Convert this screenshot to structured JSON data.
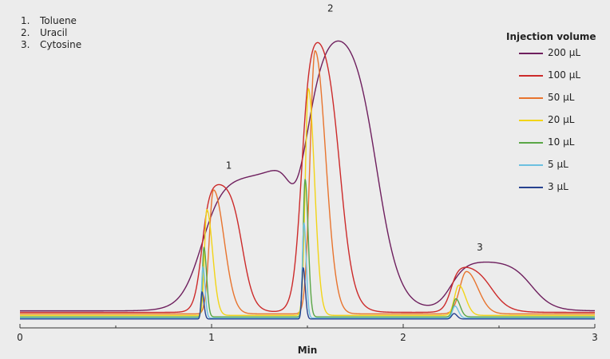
{
  "compounds": [
    {
      "num": "1.",
      "name": "Toluene"
    },
    {
      "num": "2.",
      "name": "Uracil"
    },
    {
      "num": "3.",
      "name": "Cytosine"
    }
  ],
  "legend": {
    "title": "Injection volume",
    "items": [
      {
        "label": "200 µL",
        "color": "#6e1f5e"
      },
      {
        "label": "100 µL",
        "color": "#cc2a2a"
      },
      {
        "label": "50 µL",
        "color": "#e8742e"
      },
      {
        "label": "20 µL",
        "color": "#f2d417"
      },
      {
        "label": "10 µL",
        "color": "#5aa646"
      },
      {
        "label": "5 µL",
        "color": "#6cc0e0"
      },
      {
        "label": "3 µL",
        "color": "#27428f"
      }
    ]
  },
  "chart_data": {
    "type": "line",
    "xlabel": "Min",
    "ylabel": "",
    "xlim": [
      0,
      3
    ],
    "ylim": [
      0,
      1
    ],
    "xticks": [
      "0",
      "1",
      "2",
      "3"
    ],
    "grid": false,
    "legend_position": "top-right",
    "peak_labels": [
      {
        "label": "1",
        "x": 1.09,
        "y": 0.5
      },
      {
        "label": "2",
        "x": 1.62,
        "y": 1.02
      },
      {
        "label": "3",
        "x": 2.4,
        "y": 0.23
      }
    ],
    "series": [
      {
        "name": "200 µL",
        "baseline": 0.03,
        "peaks": [
          {
            "type": "flat",
            "start": 0.95,
            "end": 1.41,
            "height": 0.445,
            "rise": 0.055,
            "fall": 0.032
          },
          {
            "type": "flat",
            "start": 1.48,
            "end": 1.86,
            "height": 0.955,
            "rise": 0.053,
            "fall": 0.06
          },
          {
            "type": "flat",
            "start": 2.25,
            "end": 2.67,
            "height": 0.165,
            "rise": 0.04,
            "fall": 0.055
          }
        ]
      },
      {
        "name": "100 µL",
        "baseline": 0.025,
        "peaks": [
          {
            "type": "flat",
            "start": 0.95,
            "end": 1.16,
            "height": 0.435,
            "rise": 0.02,
            "fall": 0.03
          },
          {
            "type": "flat",
            "start": 1.47,
            "end": 1.67,
            "height": 0.945,
            "rise": 0.022,
            "fall": 0.035
          },
          {
            "type": "flat",
            "start": 2.25,
            "end": 2.46,
            "height": 0.16,
            "rise": 0.02,
            "fall": 0.045
          }
        ]
      },
      {
        "name": "50 µL",
        "baseline": 0.02,
        "peaks": [
          {
            "type": "gauss",
            "center": 1.01,
            "height": 0.41,
            "sigma_left": 0.022,
            "sigma_right": 0.055
          },
          {
            "type": "gauss",
            "center": 1.54,
            "height": 0.87,
            "sigma_left": 0.026,
            "sigma_right": 0.055
          },
          {
            "type": "gauss",
            "center": 2.33,
            "height": 0.14,
            "sigma_left": 0.035,
            "sigma_right": 0.06
          }
        ]
      },
      {
        "name": "20 µL",
        "baseline": 0.015,
        "peaks": [
          {
            "type": "gauss",
            "center": 0.975,
            "height": 0.35,
            "sigma_left": 0.012,
            "sigma_right": 0.03
          },
          {
            "type": "gauss",
            "center": 1.505,
            "height": 0.75,
            "sigma_left": 0.016,
            "sigma_right": 0.032
          },
          {
            "type": "gauss",
            "center": 2.29,
            "height": 0.1,
            "sigma_left": 0.022,
            "sigma_right": 0.035
          }
        ]
      },
      {
        "name": "10 µL",
        "baseline": 0.01,
        "peaks": [
          {
            "type": "gauss",
            "center": 0.96,
            "height": 0.23,
            "sigma_left": 0.008,
            "sigma_right": 0.014
          },
          {
            "type": "gauss",
            "center": 1.488,
            "height": 0.455,
            "sigma_left": 0.01,
            "sigma_right": 0.016
          },
          {
            "type": "gauss",
            "center": 2.275,
            "height": 0.06,
            "sigma_left": 0.015,
            "sigma_right": 0.022
          }
        ]
      },
      {
        "name": "5 µL",
        "baseline": 0.006,
        "peaks": [
          {
            "type": "gauss",
            "center": 0.955,
            "height": 0.17,
            "sigma_left": 0.007,
            "sigma_right": 0.011
          },
          {
            "type": "gauss",
            "center": 1.482,
            "height": 0.315,
            "sigma_left": 0.008,
            "sigma_right": 0.012
          },
          {
            "type": "gauss",
            "center": 2.27,
            "height": 0.04,
            "sigma_left": 0.013,
            "sigma_right": 0.018
          }
        ]
      },
      {
        "name": "3 µL",
        "baseline": 0.003,
        "peaks": [
          {
            "type": "gauss",
            "center": 0.95,
            "height": 0.09,
            "sigma_left": 0.006,
            "sigma_right": 0.01
          },
          {
            "type": "gauss",
            "center": 1.478,
            "height": 0.17,
            "sigma_left": 0.007,
            "sigma_right": 0.011
          },
          {
            "type": "gauss",
            "center": 2.265,
            "height": 0.018,
            "sigma_left": 0.012,
            "sigma_right": 0.016
          }
        ]
      }
    ]
  }
}
